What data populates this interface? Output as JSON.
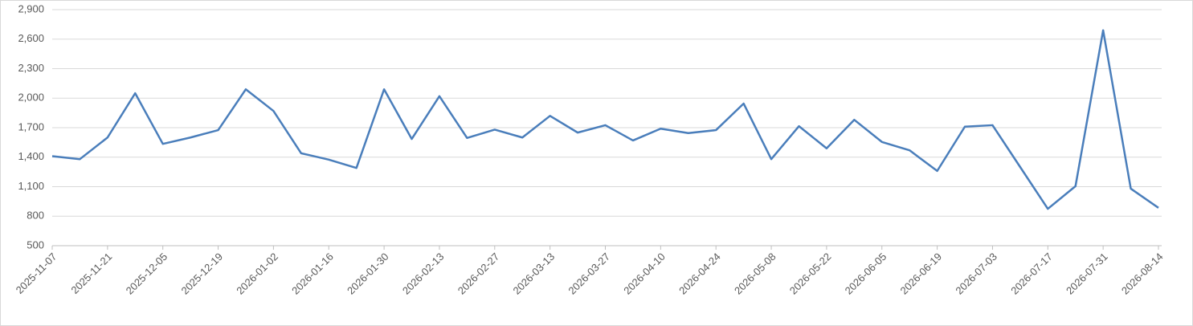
{
  "chart_data": {
    "type": "line",
    "x": [
      "2025-11-07",
      "2025-11-14",
      "2025-11-21",
      "2025-11-28",
      "2025-12-05",
      "2025-12-12",
      "2025-12-19",
      "2025-12-26",
      "2026-01-02",
      "2026-01-09",
      "2026-01-16",
      "2026-01-23",
      "2026-01-30",
      "2026-02-06",
      "2026-02-13",
      "2026-02-20",
      "2026-02-27",
      "2026-03-06",
      "2026-03-13",
      "2026-03-20",
      "2026-03-27",
      "2026-04-03",
      "2026-04-10",
      "2026-04-17",
      "2026-04-24",
      "2026-05-01",
      "2026-05-08",
      "2026-05-15",
      "2026-05-22",
      "2026-05-29",
      "2026-06-05",
      "2026-06-12",
      "2026-06-19",
      "2026-06-26",
      "2026-07-03",
      "2026-07-10",
      "2026-07-17",
      "2026-07-24",
      "2026-07-31",
      "2026-08-07",
      "2026-08-14"
    ],
    "series": [
      {
        "color": "#4a7ebb",
        "values": [
          1410,
          1380,
          1600,
          2050,
          1535,
          1600,
          1675,
          2090,
          1870,
          1440,
          1375,
          1290,
          2090,
          1585,
          2020,
          1595,
          1680,
          1600,
          1820,
          1650,
          1725,
          1570,
          1690,
          1645,
          1675,
          1945,
          1380,
          1715,
          1490,
          1780,
          1555,
          1470,
          1260,
          1710,
          1725,
          1300,
          875,
          1105,
          2690,
          1080,
          885
        ]
      }
    ],
    "xlim": [
      "2025-11-07",
      "2026-08-14"
    ],
    "xticks": [
      "2025-11-07",
      "2025-11-21",
      "2025-12-05",
      "2025-12-19",
      "2026-01-02",
      "2026-01-16",
      "2026-01-30",
      "2026-02-13",
      "2026-02-27",
      "2026-03-13",
      "2026-03-27",
      "2026-04-10",
      "2026-04-24",
      "2026-05-08",
      "2026-05-22",
      "2026-06-05",
      "2026-06-19",
      "2026-07-03",
      "2026-07-17",
      "2026-07-31",
      "2026-08-14"
    ],
    "ylim": [
      500,
      2900
    ],
    "yticks": [
      500,
      800,
      {
        "value": 1100,
        "label": "1,100"
      },
      {
        "value": 1400,
        "label": "1,400"
      },
      {
        "value": 1700,
        "label": "1,700"
      },
      {
        "value": 2000,
        "label": "2,000"
      },
      {
        "value": 2300,
        "label": "2,300"
      },
      {
        "value": 2600,
        "label": "2,600"
      },
      {
        "value": 2900,
        "label": "2,900"
      }
    ],
    "grid": true
  }
}
